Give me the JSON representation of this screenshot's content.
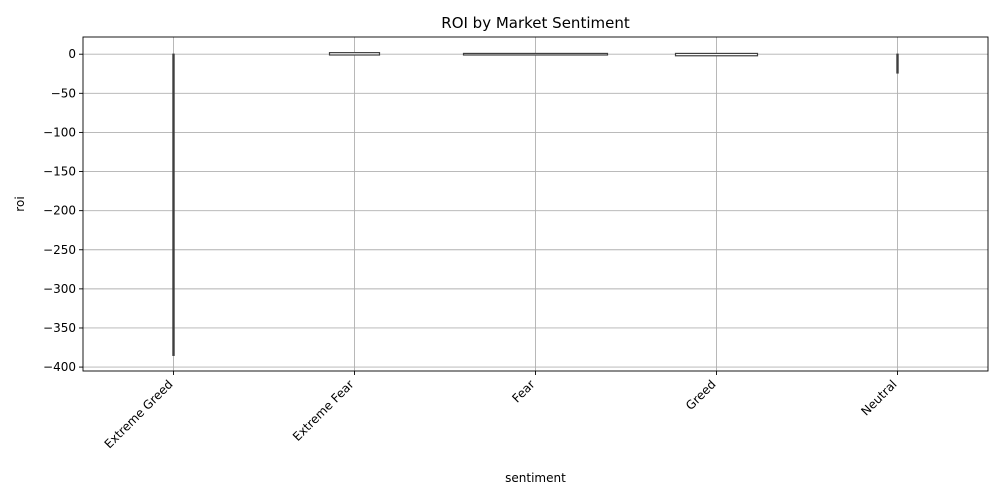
{
  "chart_data": {
    "type": "violin",
    "title": "ROI by Market Sentiment",
    "xlabel": "sentiment",
    "ylabel": "roi",
    "categories": [
      "Extreme Greed",
      "Extreme Fear",
      "Fear",
      "Greed",
      "Neutral"
    ],
    "ylim": [
      -405,
      22
    ],
    "yticks": [
      0,
      -50,
      -100,
      -150,
      -200,
      -250,
      -300,
      -350,
      -400
    ],
    "grid": true,
    "series": [
      {
        "category": "Extreme Greed",
        "min": -385,
        "max": 0,
        "shape": "thin-line"
      },
      {
        "category": "Extreme Fear",
        "min": -1,
        "max": 2,
        "shape": "wide-flat"
      },
      {
        "category": "Fear",
        "min": -1,
        "max": 1,
        "shape": "wide-flat"
      },
      {
        "category": "Greed",
        "min": -2,
        "max": 1,
        "shape": "wide-flat"
      },
      {
        "category": "Neutral",
        "min": -24,
        "max": 0,
        "shape": "thin-line"
      }
    ],
    "colors": {
      "outline": "#3f3f3f",
      "grid": "#b0b0b0",
      "background": "#ffffff"
    }
  }
}
